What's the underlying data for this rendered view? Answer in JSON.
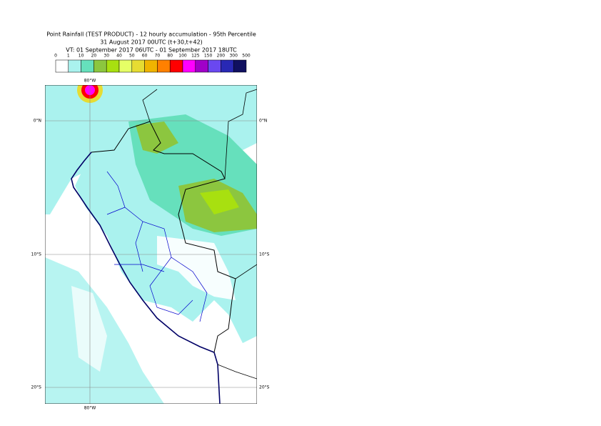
{
  "header": {
    "title": "Point Rainfall (TEST PRODUCT) - 12 hourly accumulation - 95th Percentile",
    "base_time": "31 August 2017 00UTC (t+30,t+42)",
    "validity": "VT: 01 September 2017 06UTC - 01 September 2017 18UTC"
  },
  "legend": {
    "labels": [
      "0",
      "1",
      "10",
      "20",
      "30",
      "40",
      "50",
      "60",
      "70",
      "80",
      "100",
      "125",
      "150",
      "200",
      "300",
      "500"
    ],
    "colors": [
      "#ffffff",
      "#aaf2ee",
      "#66e0bc",
      "#8cc63f",
      "#a8e010",
      "#e6ff66",
      "#e6dc32",
      "#f0b400",
      "#ff8000",
      "#ff0000",
      "#ff00ff",
      "#a000c8",
      "#6a48f0",
      "#2828b4",
      "#101060"
    ]
  },
  "map": {
    "lon_label_top": "80°W",
    "lon_label_bottom": "80°W",
    "lat_labels": [
      "0°N",
      "10°S",
      "20°S"
    ]
  }
}
